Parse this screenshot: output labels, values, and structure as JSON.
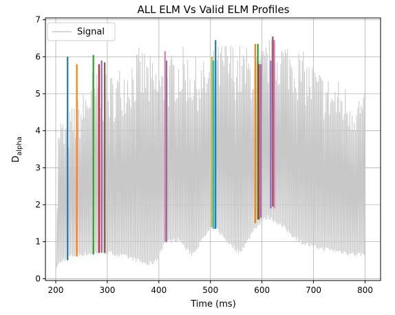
{
  "chart_data": {
    "type": "line",
    "title": "ALL ELM Vs Valid ELM Profiles",
    "xlabel": "Time (ms)",
    "ylabel_main": "D",
    "ylabel_sub": "alpha",
    "xlim": [
      180,
      830
    ],
    "ylim": [
      -0.05,
      7.05
    ],
    "xticks": [
      200,
      300,
      400,
      500,
      600,
      700,
      800
    ],
    "yticks": [
      0,
      1,
      2,
      3,
      4,
      5,
      6,
      7
    ],
    "grid": true,
    "legend": {
      "placement": "top-left",
      "entries": [
        {
          "name": "Signal",
          "color": "#c8c8c8"
        }
      ]
    },
    "signal": {
      "name": "Signal",
      "color": "#c8c8c8",
      "x_range": [
        200,
        800
      ],
      "baseline_points": [
        [
          200,
          0.25
        ],
        [
          215,
          0.45
        ],
        [
          230,
          0.55
        ],
        [
          250,
          0.6
        ],
        [
          270,
          0.62
        ],
        [
          290,
          0.65
        ],
        [
          310,
          0.62
        ],
        [
          330,
          0.55
        ],
        [
          350,
          0.48
        ],
        [
          365,
          0.4
        ],
        [
          380,
          0.32
        ],
        [
          395,
          0.42
        ],
        [
          410,
          0.9
        ],
        [
          420,
          0.95
        ],
        [
          440,
          1.0
        ],
        [
          455,
          0.7
        ],
        [
          465,
          0.6
        ],
        [
          480,
          0.9
        ],
        [
          495,
          1.2
        ],
        [
          510,
          1.35
        ],
        [
          520,
          1.15
        ],
        [
          540,
          0.85
        ],
        [
          555,
          0.65
        ],
        [
          570,
          0.9
        ],
        [
          585,
          1.3
        ],
        [
          600,
          1.5
        ],
        [
          610,
          1.6
        ],
        [
          620,
          1.55
        ],
        [
          640,
          1.35
        ],
        [
          660,
          1.1
        ],
        [
          680,
          0.9
        ],
        [
          700,
          0.8
        ],
        [
          720,
          0.75
        ],
        [
          740,
          0.7
        ],
        [
          760,
          0.65
        ],
        [
          780,
          0.6
        ],
        [
          800,
          0.6
        ]
      ],
      "peak_points": [
        [
          200,
          0.5
        ],
        [
          205,
          4.6
        ],
        [
          215,
          4.3
        ],
        [
          230,
          4.7
        ],
        [
          250,
          5.0
        ],
        [
          270,
          5.7
        ],
        [
          290,
          5.5
        ],
        [
          310,
          5.6
        ],
        [
          330,
          5.9
        ],
        [
          350,
          6.2
        ],
        [
          370,
          6.3
        ],
        [
          390,
          5.9
        ],
        [
          410,
          5.8
        ],
        [
          430,
          6.2
        ],
        [
          450,
          6.3
        ],
        [
          470,
          6.0
        ],
        [
          490,
          5.9
        ],
        [
          510,
          6.3
        ],
        [
          530,
          6.5
        ],
        [
          550,
          6.4
        ],
        [
          570,
          6.3
        ],
        [
          590,
          6.1
        ],
        [
          610,
          6.5
        ],
        [
          630,
          6.6
        ],
        [
          650,
          6.5
        ],
        [
          670,
          6.3
        ],
        [
          690,
          6.0
        ],
        [
          710,
          5.7
        ],
        [
          730,
          5.5
        ],
        [
          750,
          5.4
        ],
        [
          770,
          5.2
        ],
        [
          790,
          5.1
        ],
        [
          800,
          5.0
        ]
      ]
    },
    "elm_profiles": [
      {
        "x": 223,
        "y_start": 0.5,
        "y_end": 6.0,
        "color": "#1f77b4"
      },
      {
        "x": 241,
        "y_start": 0.6,
        "y_end": 5.8,
        "color": "#ff7f0e"
      },
      {
        "x": 273,
        "y_start": 0.65,
        "y_end": 6.05,
        "color": "#2ca02c"
      },
      {
        "x": 284,
        "y_start": 0.7,
        "y_end": 5.8,
        "color": "#d62728"
      },
      {
        "x": 289,
        "y_start": 0.7,
        "y_end": 5.9,
        "color": "#9467bd"
      },
      {
        "x": 295,
        "y_start": 0.7,
        "y_end": 5.85,
        "color": "#8c564b"
      },
      {
        "x": 412,
        "y_start": 1.0,
        "y_end": 6.15,
        "color": "#e377c2"
      },
      {
        "x": 415,
        "y_start": 1.0,
        "y_end": 5.9,
        "color": "#7f7f7f"
      },
      {
        "x": 503,
        "y_start": 1.4,
        "y_end": 6.0,
        "color": "#bcbd22"
      },
      {
        "x": 506,
        "y_start": 1.35,
        "y_end": 5.9,
        "color": "#17becf"
      },
      {
        "x": 510,
        "y_start": 1.35,
        "y_end": 6.45,
        "color": "#1f77b4"
      },
      {
        "x": 587,
        "y_start": 1.5,
        "y_end": 6.35,
        "color": "#ff7f0e"
      },
      {
        "x": 592,
        "y_start": 1.6,
        "y_end": 6.35,
        "color": "#2ca02c"
      },
      {
        "x": 594,
        "y_start": 1.6,
        "y_end": 5.8,
        "color": "#d62728"
      },
      {
        "x": 598,
        "y_start": 1.65,
        "y_end": 5.8,
        "color": "#9467bd"
      },
      {
        "x": 617,
        "y_start": 1.9,
        "y_end": 5.9,
        "color": "#9467bd"
      },
      {
        "x": 621,
        "y_start": 1.95,
        "y_end": 6.55,
        "color": "#8c564b"
      },
      {
        "x": 624,
        "y_start": 1.9,
        "y_end": 6.45,
        "color": "#e377c2"
      }
    ]
  }
}
